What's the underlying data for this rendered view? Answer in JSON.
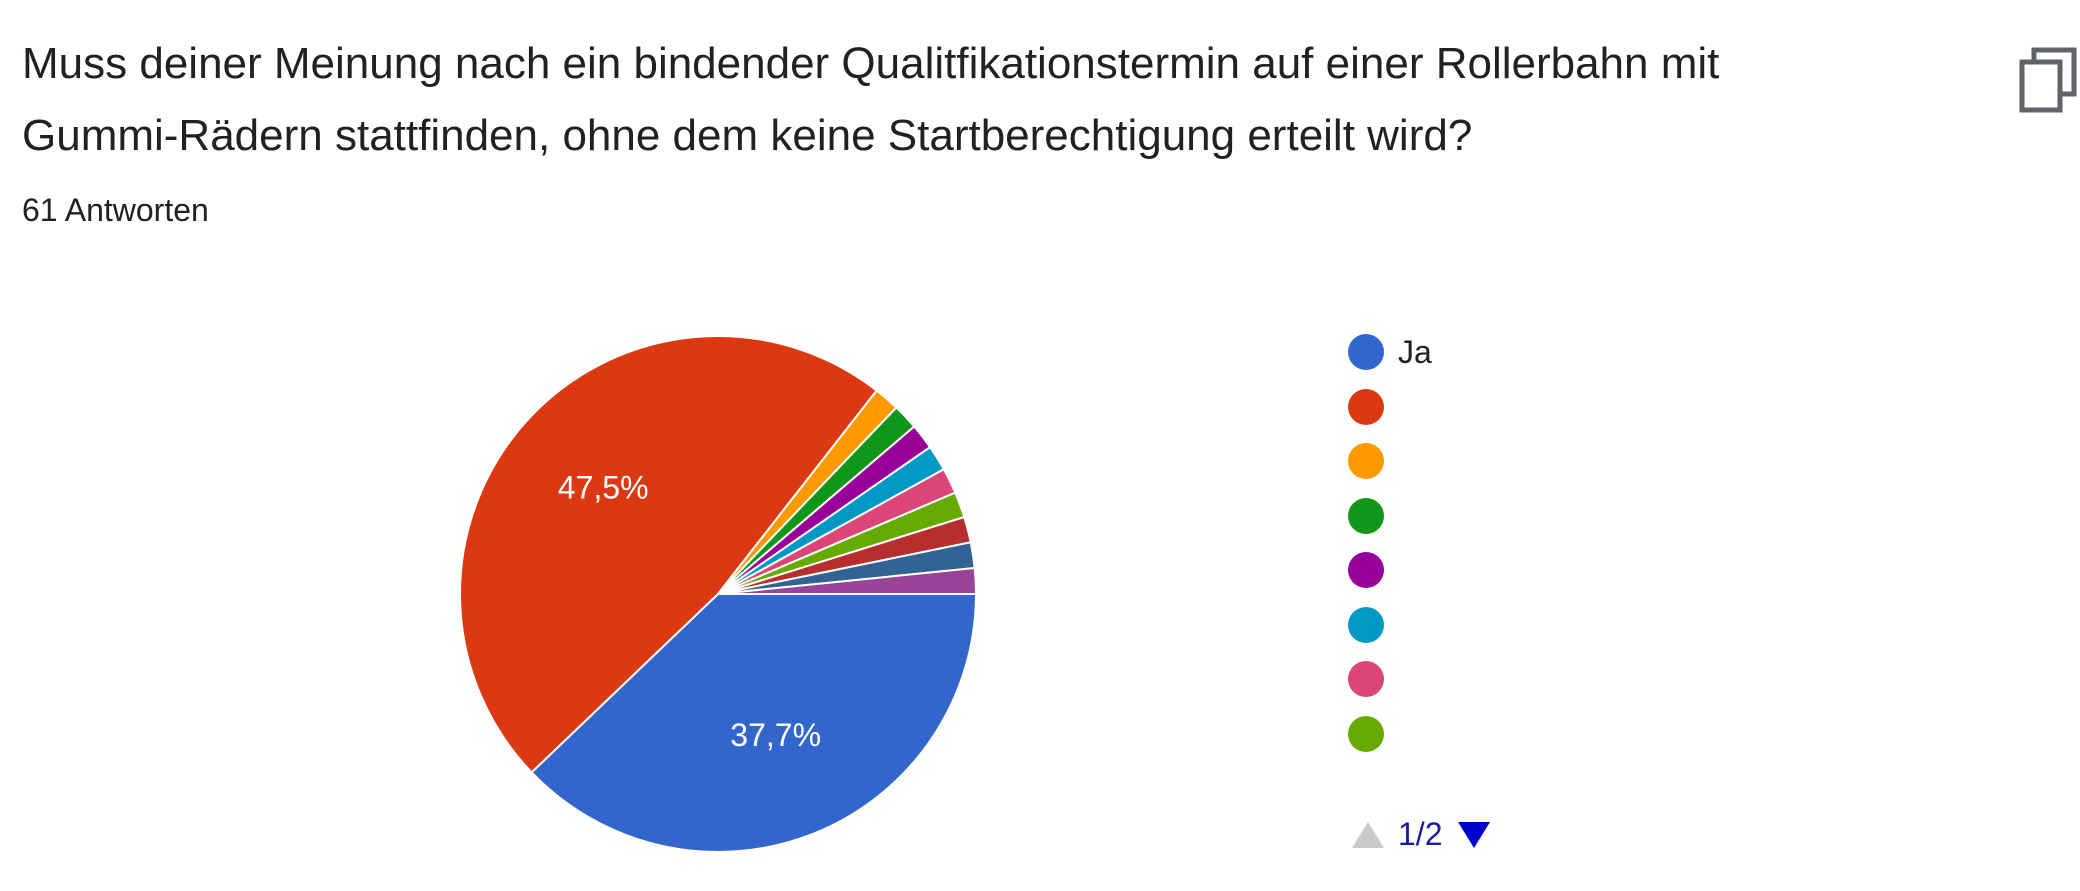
{
  "question": {
    "line1": "Muss deiner Meinung nach ein bindender Qualitfikationstermin auf einer Rollerbahn mit",
    "line2": "Gummi-Rädern stattfinden, ohne dem keine Startberechtigung erteilt wird?"
  },
  "answers_count": "61 Antworten",
  "icons": {
    "copy": "copy-icon",
    "prev": "triangle-up-icon",
    "next": "triangle-down-icon"
  },
  "pager": {
    "text": "1/2"
  },
  "chart_data": {
    "type": "pie",
    "slices": [
      {
        "label": "Ja",
        "value": 37.7,
        "display": "37,7%",
        "color": "#3366cc"
      },
      {
        "label": "",
        "value": 47.5,
        "display": "47,5%",
        "color": "#dc3912"
      },
      {
        "label": "",
        "value": 1.6,
        "color": "#ff9900"
      },
      {
        "label": "",
        "value": 1.6,
        "color": "#109618"
      },
      {
        "label": "",
        "value": 1.6,
        "color": "#990099"
      },
      {
        "label": "",
        "value": 1.6,
        "color": "#0099c6"
      },
      {
        "label": "",
        "value": 1.6,
        "color": "#dd4477"
      },
      {
        "label": "",
        "value": 1.6,
        "color": "#66aa00"
      },
      {
        "label": "",
        "value": 1.6,
        "color": "#b82e2e"
      },
      {
        "label": "",
        "value": 1.6,
        "color": "#316395"
      },
      {
        "label": "",
        "value": 1.6,
        "color": "#994499"
      }
    ],
    "legend_visible_count": 8,
    "legend_position": "right"
  }
}
